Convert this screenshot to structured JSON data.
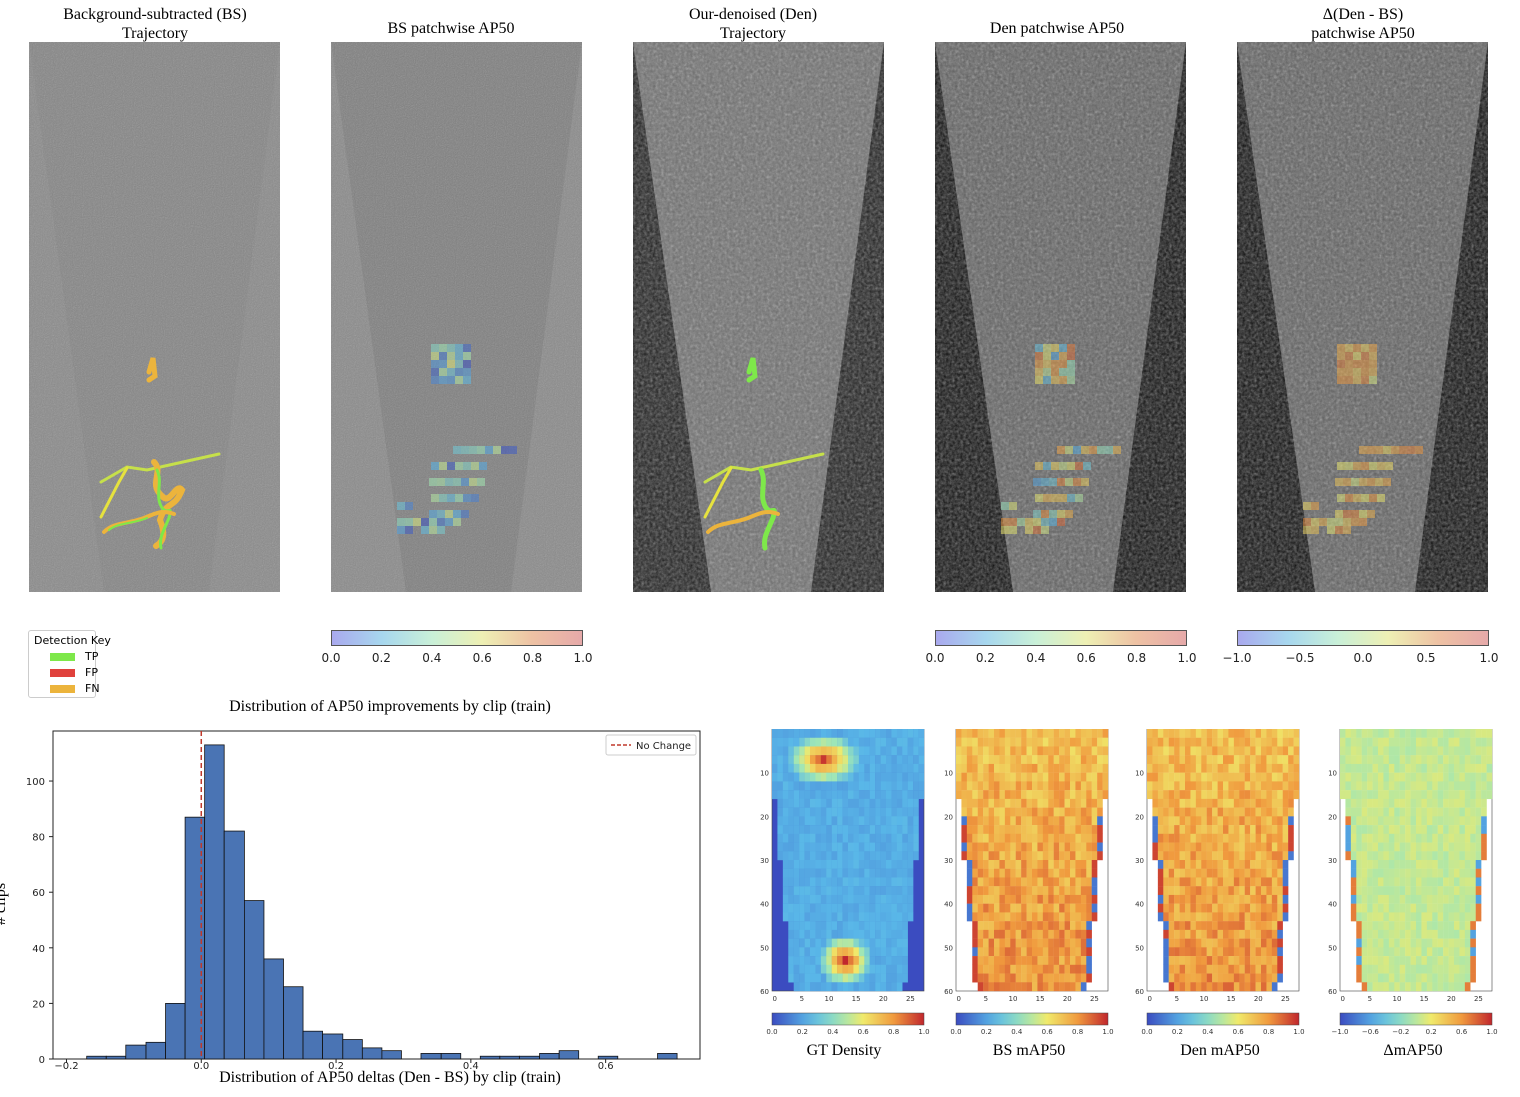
{
  "panels": [
    {
      "title_line1": "Background-subtracted (BS)",
      "title_line2": "Trajectory"
    },
    {
      "title_line1": "BS patchwise AP50",
      "title_line2": ""
    },
    {
      "title_line1": "Our-denoised (Den)",
      "title_line2": "Trajectory"
    },
    {
      "title_line1": "Den patchwise AP50",
      "title_line2": ""
    },
    {
      "title_line1": "Δ(Den - BS)",
      "title_line2": "patchwise AP50"
    }
  ],
  "colorbars": [
    {
      "ticks": [
        "0.0",
        "0.2",
        "0.4",
        "0.6",
        "0.8",
        "1.0"
      ]
    },
    {
      "ticks": [
        "0.0",
        "0.2",
        "0.4",
        "0.6",
        "0.8",
        "1.0"
      ]
    },
    {
      "ticks": [
        "−1.0",
        "−0.5",
        "0.0",
        "0.5",
        "1.0"
      ]
    }
  ],
  "legend": {
    "title": "Detection Key",
    "items": [
      {
        "label": "TP",
        "color": "#7ee84a"
      },
      {
        "label": "FP",
        "color": "#e0413c"
      },
      {
        "label": "FN",
        "color": "#ecb43c"
      }
    ]
  },
  "small_maps": [
    {
      "label": "GT Density",
      "cbar_ticks": [
        "0.0",
        "0.2",
        "0.4",
        "0.6",
        "0.8",
        "1.0"
      ]
    },
    {
      "label": "BS mAP50",
      "cbar_ticks": [
        "0.0",
        "0.2",
        "0.4",
        "0.6",
        "0.8",
        "1.0"
      ]
    },
    {
      "label": "Den mAP50",
      "cbar_ticks": [
        "0.0",
        "0.2",
        "0.4",
        "0.6",
        "0.8",
        "1.0"
      ]
    },
    {
      "label": "ΔmAP50",
      "cbar_ticks": [
        "−1.0",
        "−0.6",
        "−0.2",
        "0.2",
        "0.6",
        "1.0"
      ]
    }
  ],
  "small_map_axes": {
    "xticks": [
      "0",
      "5",
      "10",
      "15",
      "20",
      "25"
    ],
    "yticks": [
      "10",
      "20",
      "30",
      "40",
      "50",
      "60"
    ]
  },
  "chart_data": {
    "type": "bar",
    "title": "Distribution of AP50 improvements by clip (train)",
    "xlabel": "Distribution of AP50 deltas (Den - BS) by clip (train)",
    "ylabel": "# clips",
    "xlim": [
      -0.22,
      0.74
    ],
    "ylim": [
      0,
      118
    ],
    "xticks": [
      -0.2,
      0.0,
      0.2,
      0.4,
      0.6
    ],
    "xtick_labels": [
      "−0.2",
      "0.0",
      "0.2",
      "0.4",
      "0.6"
    ],
    "yticks": [
      0,
      20,
      40,
      60,
      80,
      100
    ],
    "reference_line": {
      "x": 0.0,
      "label": "No Change",
      "color": "#c0392b"
    },
    "legend_position": "top-right",
    "bar_color": "#4a74b4",
    "bins": [
      {
        "x0": -0.17,
        "x1": -0.141,
        "count": 1
      },
      {
        "x0": -0.141,
        "x1": -0.112,
        "count": 1
      },
      {
        "x0": -0.112,
        "x1": -0.082,
        "count": 5
      },
      {
        "x0": -0.082,
        "x1": -0.053,
        "count": 6
      },
      {
        "x0": -0.053,
        "x1": -0.024,
        "count": 20
      },
      {
        "x0": -0.024,
        "x1": 0.005,
        "count": 87
      },
      {
        "x0": 0.005,
        "x1": 0.034,
        "count": 113
      },
      {
        "x0": 0.034,
        "x1": 0.064,
        "count": 82
      },
      {
        "x0": 0.064,
        "x1": 0.093,
        "count": 57
      },
      {
        "x0": 0.093,
        "x1": 0.122,
        "count": 36
      },
      {
        "x0": 0.122,
        "x1": 0.151,
        "count": 26
      },
      {
        "x0": 0.151,
        "x1": 0.18,
        "count": 10
      },
      {
        "x0": 0.18,
        "x1": 0.21,
        "count": 9
      },
      {
        "x0": 0.21,
        "x1": 0.239,
        "count": 7
      },
      {
        "x0": 0.239,
        "x1": 0.268,
        "count": 4
      },
      {
        "x0": 0.268,
        "x1": 0.297,
        "count": 3
      },
      {
        "x0": 0.297,
        "x1": 0.326,
        "count": 0
      },
      {
        "x0": 0.326,
        "x1": 0.356,
        "count": 2
      },
      {
        "x0": 0.356,
        "x1": 0.385,
        "count": 2
      },
      {
        "x0": 0.385,
        "x1": 0.414,
        "count": 0
      },
      {
        "x0": 0.414,
        "x1": 0.443,
        "count": 1
      },
      {
        "x0": 0.443,
        "x1": 0.472,
        "count": 1
      },
      {
        "x0": 0.472,
        "x1": 0.502,
        "count": 1
      },
      {
        "x0": 0.502,
        "x1": 0.531,
        "count": 2
      },
      {
        "x0": 0.531,
        "x1": 0.56,
        "count": 3
      },
      {
        "x0": 0.56,
        "x1": 0.589,
        "count": 0
      },
      {
        "x0": 0.589,
        "x1": 0.618,
        "count": 1
      },
      {
        "x0": 0.618,
        "x1": 0.648,
        "count": 0
      },
      {
        "x0": 0.648,
        "x1": 0.677,
        "count": 0
      },
      {
        "x0": 0.677,
        "x1": 0.706,
        "count": 2
      }
    ]
  }
}
